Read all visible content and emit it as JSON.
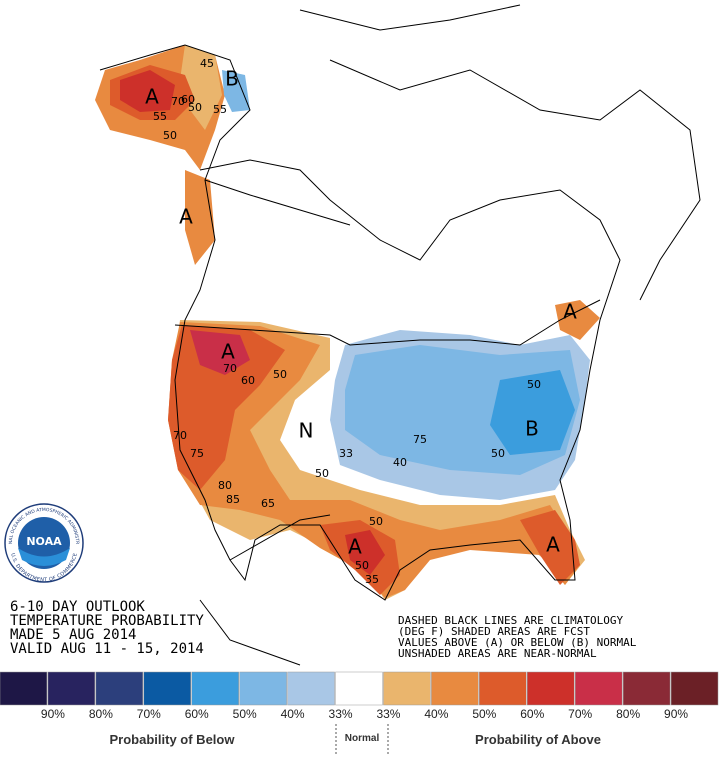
{
  "header": {
    "lines": [
      "6-10 DAY OUTLOOK",
      "TEMPERATURE PROBABILITY",
      "MADE  5 AUG 2014",
      "VALID  AUG 11 - 15, 2014"
    ]
  },
  "notes": [
    "DASHED BLACK LINES ARE CLIMATOLOGY",
    "(DEG F) SHADED AREAS ARE FCST",
    "VALUES ABOVE (A) OR BELOW (B) NORMAL",
    "UNSHADED AREAS ARE NEAR-NORMAL"
  ],
  "logo": {
    "name": "NOAA",
    "ring_top": "NATIONAL OCEANIC AND ATMOSPHERIC ADMINISTRATION",
    "ring_bottom": "U.S. DEPARTMENT OF COMMERCE"
  },
  "map": {
    "labels": [
      "A",
      "B",
      "A",
      "A",
      "N",
      "B",
      "A",
      "A",
      "A",
      "70",
      "60",
      "50",
      "55",
      "50",
      "45",
      "55",
      "70",
      "60",
      "50",
      "75",
      "80",
      "85",
      "65",
      "33",
      "70",
      "75",
      "40",
      "50",
      "50",
      "50",
      "50",
      "50",
      "35"
    ]
  },
  "legend": {
    "colors": [
      "#1e1746",
      "#28235f",
      "#2c3f7c",
      "#0b5aa3",
      "#3b9ddd",
      "#7db7e4",
      "#a9c7e6",
      "#ffffff",
      "#eab56d",
      "#e88a40",
      "#dd5b2b",
      "#cd302a",
      "#c92f48",
      "#8a2a36",
      "#6b2026"
    ],
    "labels": [
      "90%",
      "80%",
      "70%",
      "60%",
      "50%",
      "40%",
      "33%",
      "33%",
      "40%",
      "50%",
      "60%",
      "70%",
      "80%",
      "90%"
    ],
    "below": "Probability of Below",
    "normal": "Normal",
    "above": "Probability of Above"
  }
}
